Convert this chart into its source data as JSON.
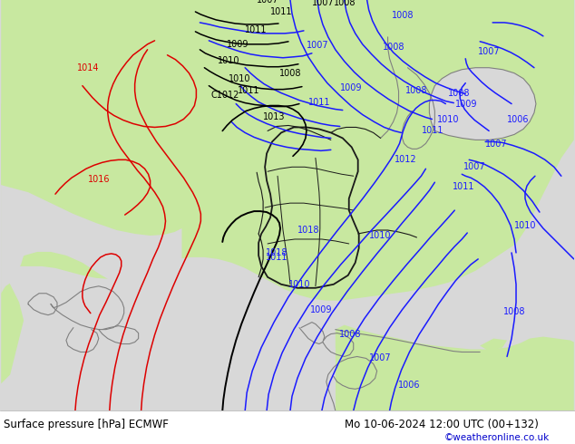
{
  "title_left": "Surface pressure [hPa] ECMWF",
  "title_right": "Mo 10-06-2024 12:00 UTC (00+132)",
  "watermark": "©weatheronline.co.uk",
  "land_color": "#c8e8a0",
  "sea_color": "#d8d8d8",
  "mountain_color": "#b8d890",
  "border_color_country": "#1a1a1a",
  "border_color_coast": "#808080",
  "isobar_blue": "#1a1aff",
  "isobar_red": "#dd0000",
  "isobar_black": "#000000",
  "bottom_bg": "#ffffff",
  "text_color": "#000000",
  "watermark_color": "#0000cc",
  "figsize": [
    6.34,
    4.9
  ],
  "dpi": 100
}
